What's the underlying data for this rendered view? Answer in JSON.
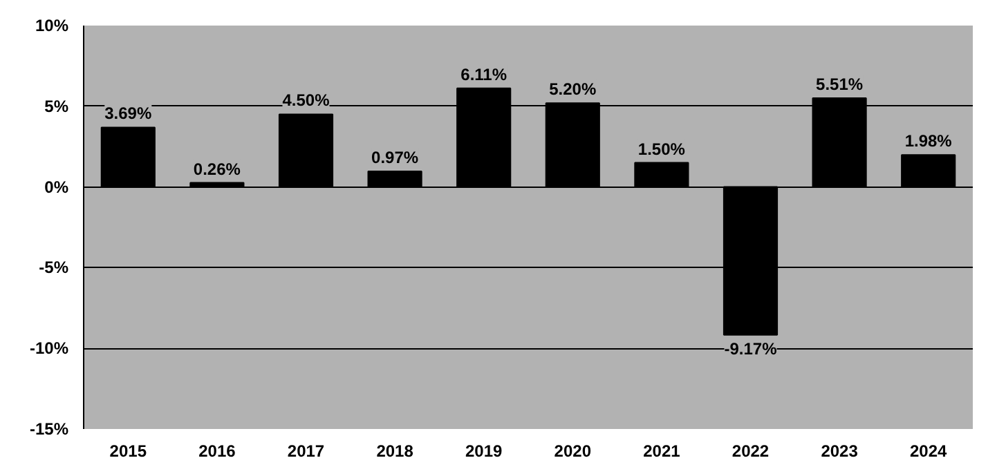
{
  "chart_data": {
    "type": "bar",
    "categories": [
      "2015",
      "2016",
      "2017",
      "2018",
      "2019",
      "2020",
      "2021",
      "2022",
      "2023",
      "2024"
    ],
    "values": [
      3.69,
      0.26,
      4.5,
      0.97,
      6.11,
      5.2,
      1.5,
      -9.17,
      5.51,
      1.98
    ],
    "value_labels": [
      "3.69%",
      "0.26%",
      "4.50%",
      "0.97%",
      "6.11%",
      "5.20%",
      "1.50%",
      "-9.17%",
      "5.51%",
      "1.98%"
    ],
    "color": "#000000",
    "ylim": [
      -15,
      10
    ],
    "yticks": [
      {
        "value": -15,
        "label": "-15%"
      },
      {
        "value": -10,
        "label": "-10%"
      },
      {
        "value": -5,
        "label": "-5%"
      },
      {
        "value": 0,
        "label": "0%"
      },
      {
        "value": 5,
        "label": "5%"
      },
      {
        "value": 10,
        "label": "10%"
      }
    ],
    "grid": "y"
  }
}
